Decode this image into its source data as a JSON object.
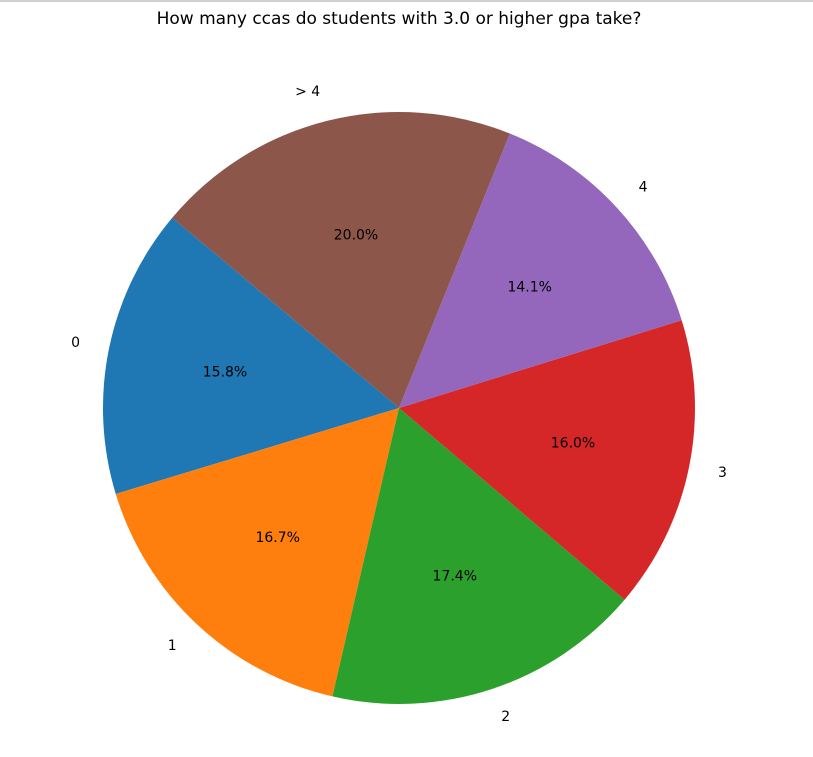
{
  "chart_data": {
    "type": "pie",
    "title": "How many ccas do students with 3.0 or higher gpa take?",
    "categories": [
      "0",
      "1",
      "2",
      "3",
      "4",
      "> 4"
    ],
    "values": [
      15.8,
      16.7,
      17.4,
      16.0,
      14.1,
      20.0
    ],
    "value_labels": [
      "15.8%",
      "16.7%",
      "17.4%",
      "16.0%",
      "14.1%",
      "20.0%"
    ],
    "colors": [
      "#1f77b4",
      "#ff7f0e",
      "#2ca02c",
      "#d62728",
      "#9467bd",
      "#8c564b"
    ],
    "start_angle_deg": 140,
    "direction": "counterclockwise",
    "legend": "none"
  }
}
